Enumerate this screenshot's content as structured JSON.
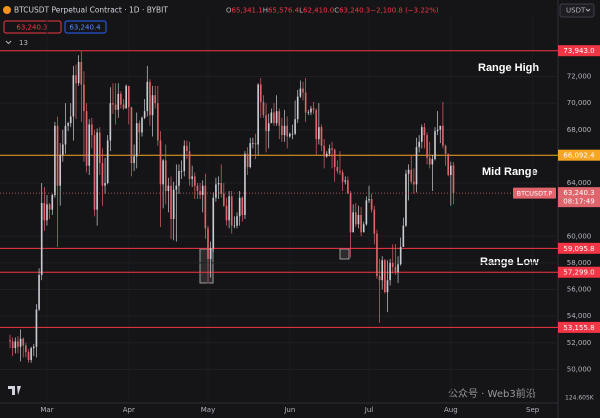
{
  "header": {
    "title": "BTCUSDT Perpetual Contract · 1D · BYBIT",
    "ohlc": [
      {
        "key": "O",
        "value": "65,341.1"
      },
      {
        "key": "H",
        "value": "65,576.4"
      },
      {
        "key": "L",
        "value": "62,410.0"
      },
      {
        "key": "C",
        "value": "63,240.3"
      },
      {
        "key": "",
        "value": "−2,100.8 (−3.22%)"
      }
    ],
    "sell_price": "63,240.3",
    "buy_price": "63,240.4",
    "indicator_count": "13",
    "currency": "USDT"
  },
  "chart_data": {
    "type": "candlestick",
    "up_color": "#c9ccd2",
    "down_color": "#e0646c",
    "candles": [
      [
        52200,
        52600,
        51600,
        52100
      ],
      [
        52100,
        52400,
        51000,
        51600
      ],
      [
        51600,
        52400,
        51200,
        52100
      ],
      [
        52100,
        52500,
        51200,
        51700
      ],
      [
        51700,
        53000,
        50600,
        52300
      ],
      [
        52300,
        52400,
        50900,
        51800
      ],
      [
        51800,
        52000,
        50900,
        51300
      ],
      [
        51300,
        51500,
        50500,
        50700
      ],
      [
        50700,
        51700,
        50500,
        51600
      ],
      [
        51600,
        51900,
        51000,
        51700
      ],
      [
        51700,
        54900,
        50900,
        54500
      ],
      [
        54500,
        57600,
        54400,
        57100
      ],
      [
        57100,
        64000,
        56700,
        62500
      ],
      [
        62500,
        63700,
        60400,
        61200
      ],
      [
        61200,
        63100,
        60800,
        62400
      ],
      [
        62400,
        62500,
        61300,
        62000
      ],
      [
        62000,
        63200,
        61600,
        63100
      ],
      [
        63100,
        68600,
        62900,
        68300
      ],
      [
        68300,
        69000,
        59200,
        63800
      ],
      [
        63800,
        67000,
        62300,
        66100
      ],
      [
        66100,
        68000,
        65600,
        66900
      ],
      [
        66900,
        70000,
        66200,
        68300
      ],
      [
        68300,
        68600,
        67900,
        68500
      ],
      [
        68500,
        70000,
        68200,
        69000
      ],
      [
        69000,
        72800,
        67200,
        72100
      ],
      [
        72100,
        72900,
        68800,
        71500
      ],
      [
        71500,
        73600,
        71300,
        73100
      ],
      [
        73100,
        73900,
        68600,
        71400
      ],
      [
        71400,
        72400,
        65600,
        69400
      ],
      [
        69400,
        70000,
        64800,
        65300
      ],
      [
        65300,
        68800,
        64600,
        68400
      ],
      [
        68400,
        68900,
        66600,
        67600
      ],
      [
        67600,
        68000,
        61500,
        62000
      ],
      [
        62000,
        68100,
        60800,
        67800
      ],
      [
        67800,
        68200,
        64600,
        65500
      ],
      [
        65500,
        66600,
        62300,
        63800
      ],
      [
        63800,
        65900,
        63200,
        64000
      ],
      [
        64000,
        67600,
        63900,
        67200
      ],
      [
        67200,
        71200,
        66400,
        70000
      ],
      [
        70000,
        71500,
        69200,
        69900
      ],
      [
        69900,
        71500,
        68400,
        69500
      ],
      [
        69500,
        71500,
        68900,
        70700
      ],
      [
        70700,
        70900,
        69600,
        69900
      ],
      [
        69900,
        70300,
        69500,
        69600
      ],
      [
        69600,
        71400,
        69600,
        71300
      ],
      [
        71300,
        71300,
        68400,
        69700
      ],
      [
        69700,
        69700,
        64500,
        65500
      ],
      [
        65500,
        66900,
        64900,
        66000
      ],
      [
        66000,
        69300,
        65100,
        68500
      ],
      [
        68500,
        68700,
        66200,
        67800
      ],
      [
        67800,
        69000,
        67500,
        68900
      ],
      [
        68900,
        70300,
        68800,
        69400
      ],
      [
        69400,
        72800,
        69000,
        71600
      ],
      [
        71600,
        71800,
        68300,
        69100
      ],
      [
        69100,
        71300,
        67500,
        70600
      ],
      [
        70600,
        71300,
        69600,
        70000
      ],
      [
        70000,
        71300,
        66800,
        67200
      ],
      [
        67200,
        67900,
        60700,
        63900
      ],
      [
        63900,
        65800,
        62100,
        65700
      ],
      [
        65700,
        66900,
        62400,
        63400
      ],
      [
        63400,
        64400,
        61800,
        63800
      ],
      [
        63800,
        64500,
        59800,
        61300
      ],
      [
        61300,
        64100,
        59700,
        63500
      ],
      [
        63500,
        65400,
        59600,
        63800
      ],
      [
        63800,
        65400,
        63200,
        64900
      ],
      [
        64900,
        65700,
        64300,
        64900
      ],
      [
        64900,
        67200,
        64500,
        66800
      ],
      [
        66800,
        67200,
        65800,
        66400
      ],
      [
        66400,
        67100,
        63800,
        64300
      ],
      [
        64300,
        65300,
        63700,
        64500
      ],
      [
        64500,
        64800,
        62800,
        63800
      ],
      [
        63800,
        64000,
        62800,
        63400
      ],
      [
        63400,
        64000,
        62800,
        63100
      ],
      [
        63100,
        64200,
        61800,
        63800
      ],
      [
        63800,
        64700,
        59800,
        60600
      ],
      [
        60600,
        60800,
        56500,
        58300
      ],
      [
        58300,
        59600,
        56900,
        59100
      ],
      [
        59100,
        63300,
        58800,
        62900
      ],
      [
        62900,
        64400,
        62600,
        63900
      ],
      [
        63900,
        64500,
        62800,
        64000
      ],
      [
        64000,
        65400,
        62900,
        63200
      ],
      [
        63200,
        64000,
        62200,
        62300
      ],
      [
        62300,
        62900,
        60800,
        61200
      ],
      [
        61200,
        63400,
        60600,
        63000
      ],
      [
        63000,
        63400,
        60200,
        60800
      ],
      [
        60800,
        61500,
        60600,
        60800
      ],
      [
        60800,
        61800,
        60600,
        61500
      ],
      [
        61500,
        63400,
        60800,
        62900
      ],
      [
        62900,
        63000,
        61100,
        61600
      ],
      [
        61600,
        66400,
        61300,
        66200
      ],
      [
        66200,
        66700,
        64600,
        65200
      ],
      [
        65200,
        67400,
        65100,
        67000
      ],
      [
        67000,
        67400,
        66600,
        67000
      ],
      [
        67000,
        67700,
        65800,
        66900
      ],
      [
        66900,
        71500,
        66100,
        71400
      ],
      [
        71400,
        71900,
        68900,
        70100
      ],
      [
        70100,
        70600,
        68900,
        69100
      ],
      [
        69100,
        70000,
        66300,
        67900
      ],
      [
        67900,
        69200,
        66600,
        68500
      ],
      [
        68500,
        69600,
        68500,
        69300
      ],
      [
        69300,
        70000,
        68300,
        68500
      ],
      [
        68500,
        70600,
        68300,
        69400
      ],
      [
        69400,
        69600,
        67300,
        68300
      ],
      [
        68300,
        68900,
        67100,
        67600
      ],
      [
        67600,
        69500,
        67100,
        68300
      ],
      [
        68300,
        69000,
        66600,
        67500
      ],
      [
        67500,
        67800,
        67400,
        67700
      ],
      [
        67700,
        68400,
        67300,
        67700
      ],
      [
        67700,
        70200,
        67600,
        68800
      ],
      [
        68800,
        71000,
        68500,
        70500
      ],
      [
        70500,
        71700,
        70400,
        71100
      ],
      [
        71100,
        71600,
        70200,
        70800
      ],
      [
        70800,
        71900,
        68600,
        69300
      ],
      [
        69300,
        69500,
        69100,
        69300
      ],
      [
        69300,
        69800,
        69100,
        69600
      ],
      [
        69600,
        70100,
        69200,
        69500
      ],
      [
        69500,
        69600,
        66100,
        67300
      ],
      [
        67300,
        70000,
        66900,
        68200
      ],
      [
        68200,
        68400,
        66400,
        66800
      ],
      [
        66800,
        67300,
        65100,
        66000
      ],
      [
        66000,
        66400,
        65900,
        66200
      ],
      [
        66200,
        66900,
        66000,
        66600
      ],
      [
        66600,
        67100,
        65100,
        66500
      ],
      [
        66500,
        66600,
        64100,
        65200
      ],
      [
        65200,
        65700,
        64700,
        64900
      ],
      [
        64900,
        66400,
        64600,
        64800
      ],
      [
        64800,
        65000,
        63400,
        64100
      ],
      [
        64100,
        64500,
        63900,
        64200
      ],
      [
        64200,
        64500,
        63200,
        63200
      ],
      [
        63200,
        63400,
        58400,
        60300
      ],
      [
        60300,
        62400,
        60300,
        61800
      ],
      [
        61800,
        62500,
        60700,
        60900
      ],
      [
        60900,
        62300,
        60600,
        61600
      ],
      [
        61600,
        62200,
        60000,
        60300
      ],
      [
        60300,
        61100,
        60300,
        60900
      ],
      [
        60900,
        63000,
        60800,
        62700
      ],
      [
        62700,
        63800,
        62500,
        62800
      ],
      [
        62800,
        63200,
        61800,
        62000
      ],
      [
        62000,
        62300,
        59400,
        60200
      ],
      [
        60200,
        60500,
        56800,
        57000
      ],
      [
        57000,
        58300,
        53500,
        56700
      ],
      [
        56700,
        58500,
        56000,
        58200
      ],
      [
        58200,
        58300,
        55700,
        55800
      ],
      [
        55800,
        58200,
        54300,
        56700
      ],
      [
        56700,
        58300,
        56300,
        58000
      ],
      [
        58000,
        59400,
        57200,
        57700
      ],
      [
        57700,
        59400,
        57100,
        57300
      ],
      [
        57300,
        58500,
        56500,
        57900
      ],
      [
        57900,
        59900,
        57800,
        59200
      ],
      [
        59200,
        61400,
        59200,
        60800
      ],
      [
        60800,
        65000,
        60700,
        64700
      ],
      [
        64700,
        65400,
        62700,
        65000
      ],
      [
        65000,
        66100,
        63900,
        64100
      ],
      [
        64100,
        65100,
        63200,
        63900
      ],
      [
        63900,
        67400,
        63300,
        66700
      ],
      [
        66700,
        67600,
        66300,
        67100
      ],
      [
        67100,
        68400,
        66600,
        68200
      ],
      [
        68200,
        68500,
        66600,
        67600
      ],
      [
        67600,
        67800,
        65400,
        65900
      ],
      [
        65900,
        67100,
        65100,
        65400
      ],
      [
        65400,
        66100,
        63400,
        65800
      ],
      [
        65800,
        68200,
        65700,
        67900
      ],
      [
        67900,
        69400,
        67600,
        68000
      ],
      [
        68000,
        68300,
        67000,
        68300
      ],
      [
        68300,
        70100,
        66600,
        66800
      ],
      [
        66800,
        66900,
        65300,
        66200
      ],
      [
        66200,
        66200,
        64500,
        64600
      ],
      [
        64600,
        65600,
        62300,
        65300
      ],
      [
        65341.1,
        65576.4,
        62410.0,
        63240.3
      ]
    ],
    "xlim": [
      -3.8,
      207.6
    ],
    "xticks": [
      {
        "value": 14,
        "label": "Mar"
      },
      {
        "value": 45,
        "label": "Apr"
      },
      {
        "value": 75,
        "label": "May"
      },
      {
        "value": 106,
        "label": "Jun"
      },
      {
        "value": 136,
        "label": "Jul"
      },
      {
        "value": 167,
        "label": "Aug"
      },
      {
        "value": 198,
        "label": "Sep"
      }
    ],
    "ylim": [
      47700,
      76700
    ],
    "yticks": [
      {
        "value": 50000,
        "label": "50,000"
      },
      {
        "value": 52000,
        "label": "52,000"
      },
      {
        "value": 54000,
        "label": "54,000"
      },
      {
        "value": 56000,
        "label": "56,000"
      },
      {
        "value": 58000,
        "label": "58,000"
      },
      {
        "value": 60000,
        "label": "60,000"
      },
      {
        "value": 64000,
        "label": "64,000"
      },
      {
        "value": 68000,
        "label": "68,000"
      },
      {
        "value": 70000,
        "label": "70,000"
      },
      {
        "value": 72000,
        "label": "72,000"
      }
    ],
    "levels": [
      {
        "value": 73943.0,
        "label": "73,943.0",
        "color": "#f23645"
      },
      {
        "value": 66092.4,
        "label": "66,092.4",
        "color": "#f5a623"
      },
      {
        "value": 59095.8,
        "label": "59,095.8",
        "color": "#f23645"
      },
      {
        "value": 57299.0,
        "label": "57,299.0",
        "color": "#f23645"
      },
      {
        "value": 53155.8,
        "label": "53,155.8",
        "color": "#f23645"
      }
    ],
    "last_price": {
      "value": 63240.3,
      "label": "63,240.3",
      "countdown": "08:17:49",
      "symbol": "BTCUSDT.P"
    },
    "annotations": [
      "Range High",
      "Mid Range",
      "Range Low"
    ],
    "volume_label": "124.605K",
    "watermark": "公众号 · Web3前沿"
  }
}
